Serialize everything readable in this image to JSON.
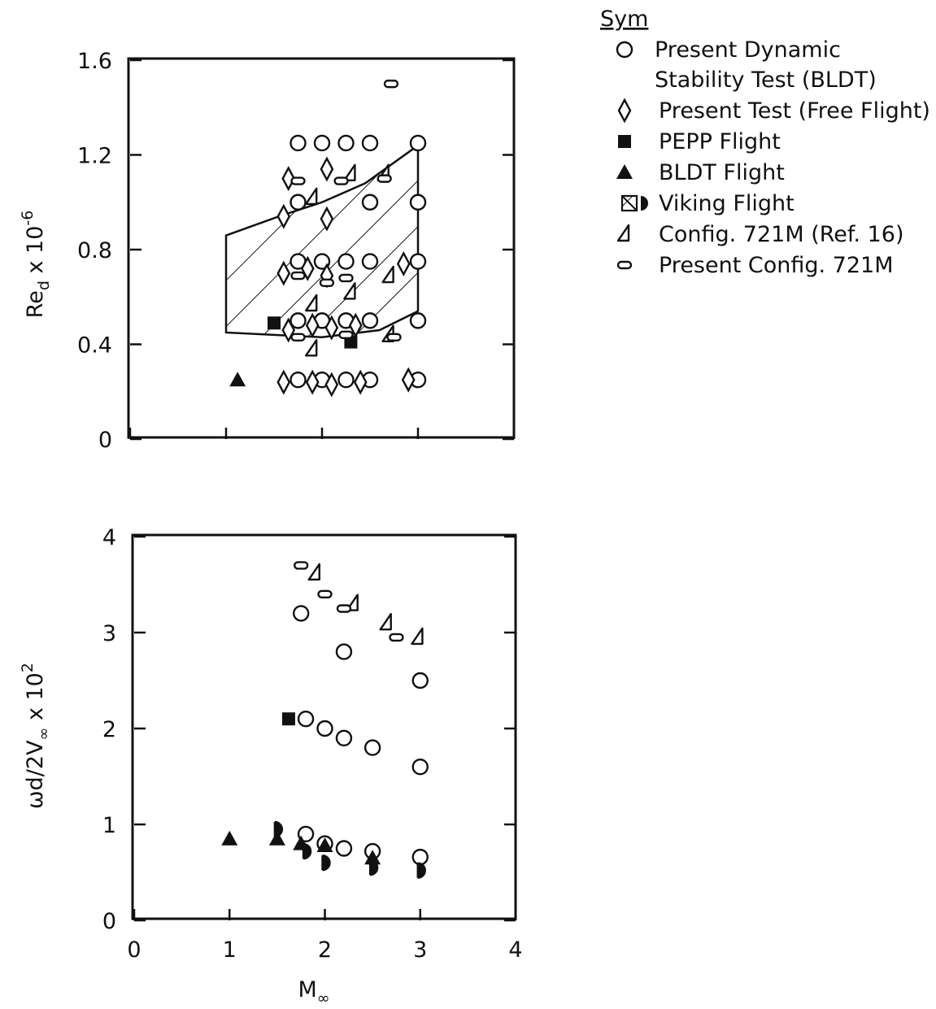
{
  "legend": {
    "title": "Sym",
    "entries": [
      {
        "symbol": "circle-open",
        "lines": [
          "Present Dynamic",
          "Stability Test (BLDT)"
        ]
      },
      {
        "symbol": "diamond-open",
        "lines": [
          "Present Test (Free Flight)"
        ]
      },
      {
        "symbol": "square-filled",
        "lines": [
          "PEPP Flight"
        ]
      },
      {
        "symbol": "triangle-filled",
        "lines": [
          "BLDT Flight"
        ]
      },
      {
        "symbol": "hatch-and-half-filled-circle",
        "lines": [
          "Viking Flight"
        ]
      },
      {
        "symbol": "flagged-triangle-open",
        "lines": [
          "Config. 721M (Ref. 16)"
        ]
      },
      {
        "symbol": "oval-open",
        "lines": [
          "Present Config. 721M"
        ]
      }
    ]
  },
  "chart_data": [
    {
      "type": "scatter",
      "panel": "top",
      "xlabel": "",
      "ylabel": "Re_d x 10^-6",
      "xlim": [
        0,
        4
      ],
      "ylim": [
        0,
        1.6
      ],
      "x_ticks": [
        0,
        1,
        2,
        3,
        4
      ],
      "y_ticks": [
        "0",
        "0.4",
        "0.8",
        "1.2",
        "1.6"
      ],
      "grid": false,
      "region": {
        "name": "Viking Flight",
        "style": "hatched",
        "polygon": [
          [
            1.0,
            0.86
          ],
          [
            1.55,
            0.94
          ],
          [
            2.0,
            1.0
          ],
          [
            2.45,
            1.08
          ],
          [
            3.0,
            1.24
          ],
          [
            3.0,
            0.54
          ],
          [
            2.6,
            0.46
          ],
          [
            2.0,
            0.43
          ],
          [
            1.5,
            0.44
          ],
          [
            1.0,
            0.45
          ]
        ]
      },
      "series": [
        {
          "name": "Present Dynamic Stability Test (BLDT)",
          "symbol": "circle-open",
          "points": [
            [
              1.75,
              1.25
            ],
            [
              2.0,
              1.25
            ],
            [
              2.25,
              1.25
            ],
            [
              2.5,
              1.25
            ],
            [
              3.0,
              1.25
            ],
            [
              1.75,
              1.0
            ],
            [
              2.5,
              1.0
            ],
            [
              3.0,
              1.0
            ],
            [
              1.75,
              0.75
            ],
            [
              2.0,
              0.75
            ],
            [
              2.25,
              0.75
            ],
            [
              2.5,
              0.75
            ],
            [
              3.0,
              0.75
            ],
            [
              1.75,
              0.5
            ],
            [
              2.0,
              0.5
            ],
            [
              2.25,
              0.5
            ],
            [
              2.5,
              0.5
            ],
            [
              3.0,
              0.5
            ],
            [
              1.75,
              0.25
            ],
            [
              2.0,
              0.25
            ],
            [
              2.25,
              0.25
            ],
            [
              2.5,
              0.25
            ],
            [
              3.0,
              0.25
            ]
          ]
        },
        {
          "name": "Present Test (Free Flight)",
          "symbol": "diamond-open",
          "points": [
            [
              1.65,
              1.1
            ],
            [
              2.05,
              1.14
            ],
            [
              1.6,
              0.94
            ],
            [
              2.05,
              0.93
            ],
            [
              1.6,
              0.7
            ],
            [
              1.85,
              0.72
            ],
            [
              2.05,
              0.69
            ],
            [
              2.85,
              0.74
            ],
            [
              1.65,
              0.46
            ],
            [
              1.9,
              0.48
            ],
            [
              2.1,
              0.47
            ],
            [
              2.35,
              0.48
            ],
            [
              1.6,
              0.24
            ],
            [
              1.9,
              0.24
            ],
            [
              2.1,
              0.23
            ],
            [
              2.4,
              0.24
            ],
            [
              2.9,
              0.25
            ]
          ]
        },
        {
          "name": "PEPP Flight",
          "symbol": "square-filled",
          "points": [
            [
              1.5,
              0.49
            ],
            [
              2.3,
              0.41
            ]
          ]
        },
        {
          "name": "BLDT Flight",
          "symbol": "triangle-filled",
          "points": [
            [
              1.12,
              0.25
            ]
          ]
        },
        {
          "name": "Config. 721M (Ref. 16)",
          "symbol": "flagged-triangle-open",
          "points": [
            [
              2.3,
              1.12
            ],
            [
              2.65,
              1.12
            ],
            [
              1.9,
              1.02
            ],
            [
              2.3,
              0.62
            ],
            [
              1.9,
              0.57
            ],
            [
              2.7,
              0.69
            ],
            [
              2.7,
              0.44
            ],
            [
              1.9,
              0.38
            ]
          ]
        },
        {
          "name": "Present Config. 721M",
          "symbol": "oval-open",
          "points": [
            [
              2.72,
              1.5
            ],
            [
              1.75,
              1.09
            ],
            [
              2.2,
              1.09
            ],
            [
              2.65,
              1.1
            ],
            [
              1.75,
              0.69
            ],
            [
              2.05,
              0.66
            ],
            [
              2.25,
              0.68
            ],
            [
              1.75,
              0.43
            ],
            [
              2.25,
              0.44
            ],
            [
              2.75,
              0.43
            ]
          ]
        }
      ]
    },
    {
      "type": "scatter",
      "panel": "bottom",
      "xlabel": "M∞",
      "ylabel": "ωd/2V∞ x 10^2",
      "xlim": [
        0,
        4
      ],
      "ylim": [
        0,
        4
      ],
      "x_ticks": [
        "0",
        "1",
        "2",
        "3",
        "4"
      ],
      "y_ticks": [
        "0",
        "1",
        "2",
        "3",
        "4"
      ],
      "grid": false,
      "series": [
        {
          "name": "Present Dynamic Stability Test (BLDT)",
          "symbol": "circle-open",
          "points": [
            [
              1.75,
              3.2
            ],
            [
              2.2,
              2.8
            ],
            [
              3.0,
              2.5
            ],
            [
              1.8,
              2.1
            ],
            [
              2.0,
              2.0
            ],
            [
              2.2,
              1.9
            ],
            [
              2.5,
              1.8
            ],
            [
              3.0,
              1.6
            ],
            [
              1.8,
              0.9
            ],
            [
              2.0,
              0.8
            ],
            [
              2.2,
              0.75
            ],
            [
              2.5,
              0.72
            ],
            [
              3.0,
              0.66
            ]
          ]
        },
        {
          "name": "PEPP Flight",
          "symbol": "square-filled",
          "points": [
            [
              1.62,
              2.1
            ]
          ]
        },
        {
          "name": "BLDT Flight",
          "symbol": "triangle-filled",
          "points": [
            [
              1.0,
              0.85
            ],
            [
              1.5,
              0.85
            ],
            [
              1.75,
              0.8
            ],
            [
              2.0,
              0.78
            ],
            [
              2.5,
              0.65
            ]
          ]
        },
        {
          "name": "Viking Flight",
          "symbol": "half-filled-circle",
          "points": [
            [
              1.5,
              0.95
            ],
            [
              1.8,
              0.72
            ],
            [
              2.0,
              0.6
            ],
            [
              2.5,
              0.55
            ],
            [
              3.0,
              0.52
            ]
          ]
        },
        {
          "name": "Config. 721M (Ref. 16)",
          "symbol": "flagged-triangle-open",
          "points": [
            [
              1.9,
              3.62
            ],
            [
              2.3,
              3.3
            ],
            [
              2.65,
              3.1
            ],
            [
              2.98,
              2.95
            ]
          ]
        },
        {
          "name": "Present Config. 721M",
          "symbol": "oval-open",
          "points": [
            [
              1.75,
              3.7
            ],
            [
              2.0,
              3.4
            ],
            [
              2.2,
              3.25
            ],
            [
              2.75,
              2.95
            ]
          ]
        }
      ]
    }
  ]
}
